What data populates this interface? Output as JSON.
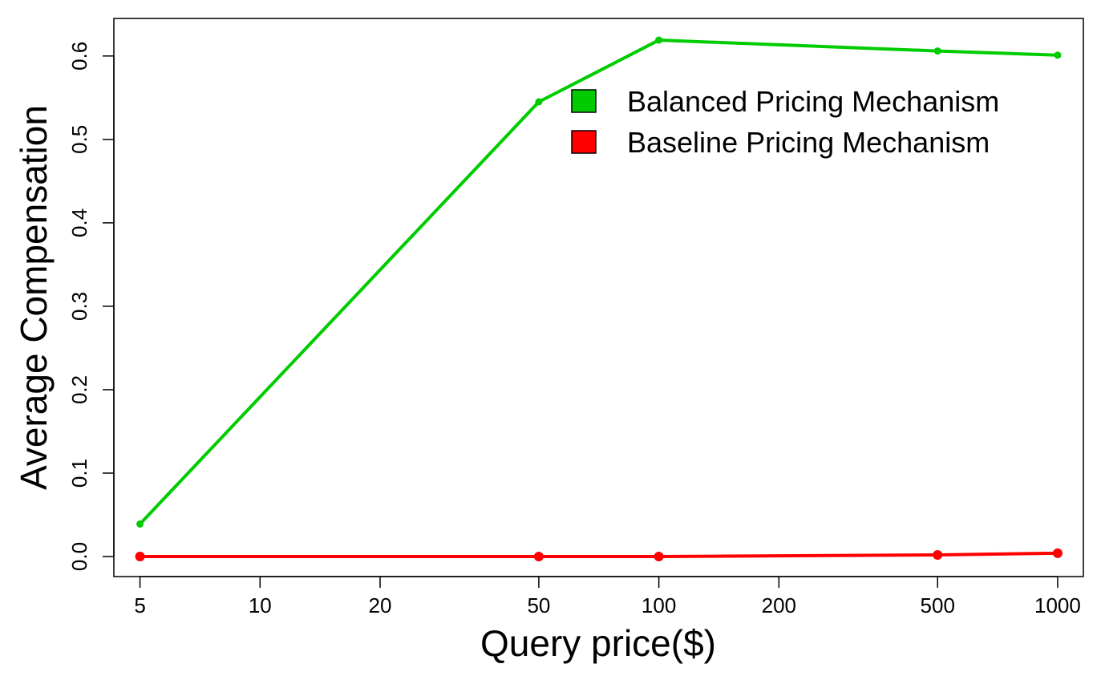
{
  "chart_data": {
    "type": "line",
    "xlabel": "Query price($)",
    "ylabel": "Average Compensation",
    "x_scale": "log",
    "x_ticks": [
      5,
      10,
      20,
      50,
      100,
      200,
      500,
      1000
    ],
    "x_tick_labels": [
      "5",
      "10",
      "20",
      "50",
      "100",
      "200",
      "500",
      "1000"
    ],
    "y_ticks": [
      0.0,
      0.1,
      0.2,
      0.3,
      0.4,
      0.5,
      0.6
    ],
    "y_tick_labels": [
      "0.0",
      "0.1",
      "0.2",
      "0.3",
      "0.4",
      "0.5",
      "0.6"
    ],
    "xlim": [
      4.3,
      1160
    ],
    "ylim": [
      -0.024,
      0.645
    ],
    "x": [
      5,
      50,
      100,
      500,
      1000
    ],
    "series": [
      {
        "name": "Balanced Pricing Mechanism",
        "color": "#00cc00",
        "values": [
          0.039,
          0.545,
          0.619,
          0.606,
          0.601
        ]
      },
      {
        "name": "Baseline Pricing Mechanism",
        "color": "#ff0000",
        "values": [
          0.0,
          0.0,
          0.0,
          0.002,
          0.004
        ]
      }
    ],
    "legend_position": "top-right",
    "grid": false
  }
}
